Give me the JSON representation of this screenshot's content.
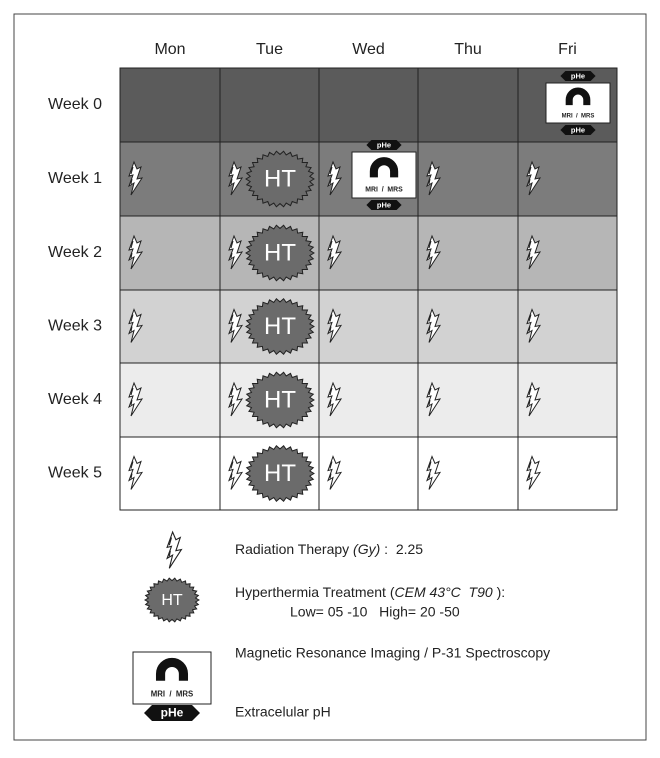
{
  "days": [
    "Mon",
    "Tue",
    "Wed",
    "Thu",
    "Fri"
  ],
  "weeks": [
    "Week 0",
    "Week 1",
    "Week 2",
    "Week 3",
    "Week 4",
    "Week 5"
  ],
  "icons": {
    "ht": "HT",
    "mri": "MRI  /  MRS",
    "phe": "pHe"
  },
  "legend": {
    "radiation": {
      "label": "Radiation Therapy ",
      "unit": "(Gy)",
      "value": " :  2.25"
    },
    "hyperthermia": {
      "label": "Hyperthermia Treatment (",
      "measure": "CEM 43°C  T90",
      "close": " ):",
      "range": "Low= 05 -10   High= 20 -50"
    },
    "imaging": {
      "label": "Magnetic Resonance Imaging / P-31 Spectroscopy"
    },
    "ph": {
      "label": "Extracelular pH"
    }
  }
}
